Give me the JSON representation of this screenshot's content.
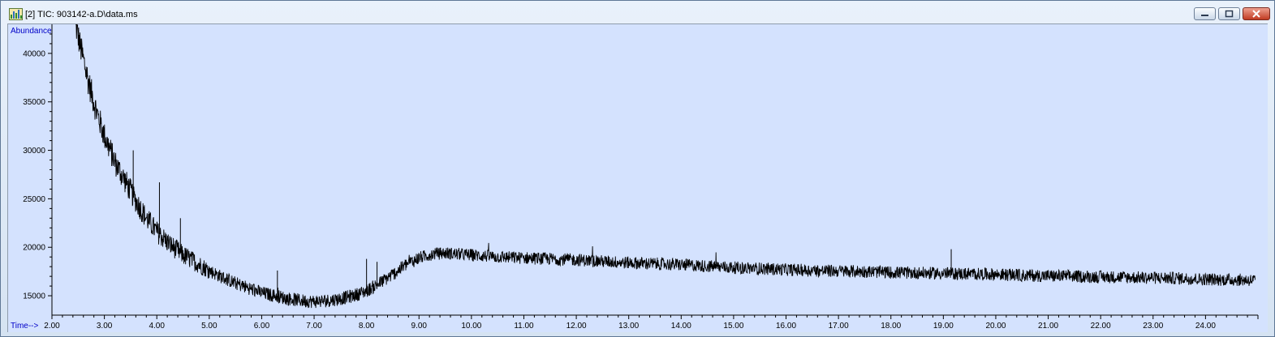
{
  "window": {
    "title": "[2] TIC: 903142-a.D\\data.ms",
    "controls": [
      "minimize",
      "maximize",
      "close"
    ],
    "icons": {
      "app": "chart-app-icon",
      "minimize": "minimize-icon",
      "maximize": "maximize-icon",
      "close": "close-icon"
    }
  },
  "colors": {
    "plot_background": "#d4e2fe",
    "trace": "#000000",
    "axis_labels": "#0000c8"
  },
  "chart_data": {
    "type": "line",
    "title": "",
    "xlabel": "Time-->",
    "ylabel": "Abundance",
    "xlim": [
      2.0,
      25.0
    ],
    "ylim": [
      13000,
      43000
    ],
    "x_ticks": [
      "2.00",
      "3.00",
      "4.00",
      "5.00",
      "6.00",
      "7.00",
      "8.00",
      "9.00",
      "10.00",
      "11.00",
      "12.00",
      "13.00",
      "14.00",
      "15.00",
      "16.00",
      "17.00",
      "18.00",
      "19.00",
      "20.00",
      "21.00",
      "22.00",
      "23.00",
      "24.00"
    ],
    "y_ticks": [
      "15000",
      "20000",
      "25000",
      "30000",
      "35000",
      "40000"
    ],
    "grid": false,
    "series": [
      {
        "x": [
          2.45,
          2.55,
          2.7,
          2.85,
          3.0,
          3.2,
          3.4,
          3.6,
          3.8,
          4.0,
          4.25,
          4.5,
          4.75,
          5.0,
          5.25,
          5.5,
          5.75,
          6.0,
          6.25,
          6.5,
          6.75,
          7.0,
          7.25,
          7.5,
          7.75,
          8.0,
          8.25,
          8.5,
          8.75,
          9.0,
          9.25,
          9.5,
          10.0,
          10.5,
          11.0,
          11.5,
          12.0,
          12.5,
          13.0,
          13.5,
          14.0,
          14.5,
          15.0,
          15.5,
          16.0,
          16.5,
          17.0,
          17.5,
          18.0,
          18.5,
          19.0,
          19.5,
          20.0,
          20.5,
          21.0,
          21.5,
          22.0,
          22.5,
          23.0,
          23.5,
          24.0,
          24.5,
          24.95
        ],
        "y": [
          43000,
          40500,
          37000,
          34000,
          31500,
          28800,
          26800,
          24800,
          23000,
          21600,
          20300,
          19200,
          18400,
          17600,
          16900,
          16300,
          15800,
          15300,
          15000,
          14700,
          14500,
          14400,
          14500,
          14700,
          15000,
          15500,
          16300,
          17200,
          18200,
          18900,
          19300,
          19400,
          19200,
          19000,
          18900,
          18800,
          18700,
          18550,
          18400,
          18300,
          18200,
          18050,
          17900,
          17800,
          17700,
          17600,
          17550,
          17500,
          17400,
          17350,
          17300,
          17250,
          17200,
          17100,
          17050,
          17000,
          16950,
          16900,
          16850,
          16800,
          16700,
          16650,
          16600
        ]
      }
    ],
    "spikes": [
      {
        "x": 3.55,
        "y": 30000
      },
      {
        "x": 4.05,
        "y": 26700
      },
      {
        "x": 4.45,
        "y": 23000
      },
      {
        "x": 6.3,
        "y": 17600
      },
      {
        "x": 8.0,
        "y": 18800
      },
      {
        "x": 8.2,
        "y": 18500
      },
      {
        "x": 19.15,
        "y": 19800
      }
    ]
  }
}
